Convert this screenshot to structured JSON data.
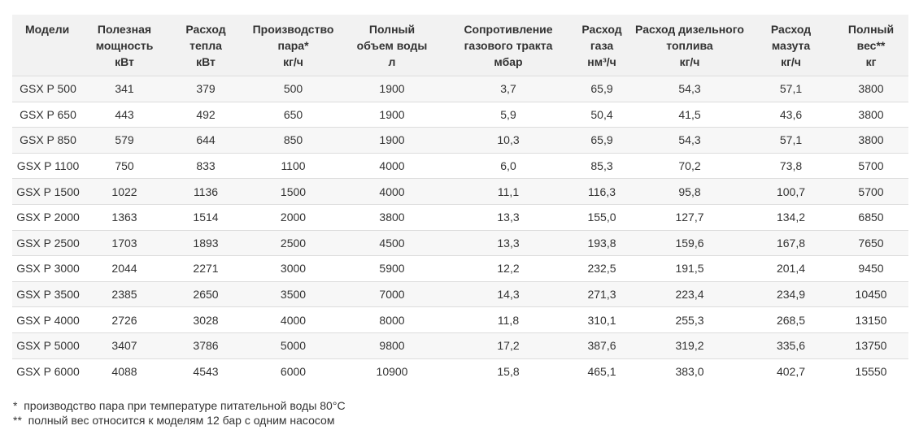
{
  "table": {
    "headers": [
      {
        "lines": [
          "Модели"
        ]
      },
      {
        "lines": [
          "Полезная",
          "мощность",
          "кВт"
        ]
      },
      {
        "lines": [
          "Расход",
          "тепла",
          "кВт"
        ]
      },
      {
        "lines": [
          "Производство",
          "пара*",
          "кг/ч"
        ]
      },
      {
        "lines": [
          "Полный",
          "объем воды",
          "л"
        ]
      },
      {
        "lines": [
          "Сопротивление",
          "газового тракта",
          "мбар"
        ]
      },
      {
        "lines": [
          "Расход",
          "газа",
          "нм³/ч"
        ]
      },
      {
        "lines": [
          "Расход дизельного",
          "топлива",
          "кг/ч"
        ]
      },
      {
        "lines": [
          "Расход",
          "мазута",
          "кг/ч"
        ]
      },
      {
        "lines": [
          "Полный",
          "вес**",
          "кг"
        ]
      }
    ],
    "rows": [
      [
        "GSX P 500",
        "341",
        "379",
        "500",
        "1900",
        "3,7",
        "65,9",
        "54,3",
        "57,1",
        "3800"
      ],
      [
        "GSX P 650",
        "443",
        "492",
        "650",
        "1900",
        "5,9",
        "50,4",
        "41,5",
        "43,6",
        "3800"
      ],
      [
        "GSX P 850",
        "579",
        "644",
        "850",
        "1900",
        "10,3",
        "65,9",
        "54,3",
        "57,1",
        "3800"
      ],
      [
        "GSX P 1100",
        "750",
        "833",
        "1100",
        "4000",
        "6,0",
        "85,3",
        "70,2",
        "73,8",
        "5700"
      ],
      [
        "GSX P 1500",
        "1022",
        "1136",
        "1500",
        "4000",
        "11,1",
        "116,3",
        "95,8",
        "100,7",
        "5700"
      ],
      [
        "GSX P 2000",
        "1363",
        "1514",
        "2000",
        "3800",
        "13,3",
        "155,0",
        "127,7",
        "134,2",
        "6850"
      ],
      [
        "GSX P 2500",
        "1703",
        "1893",
        "2500",
        "4500",
        "13,3",
        "193,8",
        "159,6",
        "167,8",
        "7650"
      ],
      [
        "GSX P 3000",
        "2044",
        "2271",
        "3000",
        "5900",
        "12,2",
        "232,5",
        "191,5",
        "201,4",
        "9450"
      ],
      [
        "GSX P 3500",
        "2385",
        "2650",
        "3500",
        "7000",
        "14,3",
        "271,3",
        "223,4",
        "234,9",
        "10450"
      ],
      [
        "GSX P 4000",
        "2726",
        "3028",
        "4000",
        "8000",
        "11,8",
        "310,1",
        "255,3",
        "268,5",
        "13150"
      ],
      [
        "GSX P 5000",
        "3407",
        "3786",
        "5000",
        "9800",
        "17,2",
        "387,6",
        "319,2",
        "335,6",
        "13750"
      ],
      [
        "GSX P 6000",
        "4088",
        "4543",
        "6000",
        "10900",
        "15,8",
        "465,1",
        "383,0",
        "402,7",
        "15550"
      ]
    ]
  },
  "notes": [
    "*  производство пара при температуре питательной воды 80°C",
    "**  полный вес относится к моделям 12 бар с одним насосом"
  ]
}
